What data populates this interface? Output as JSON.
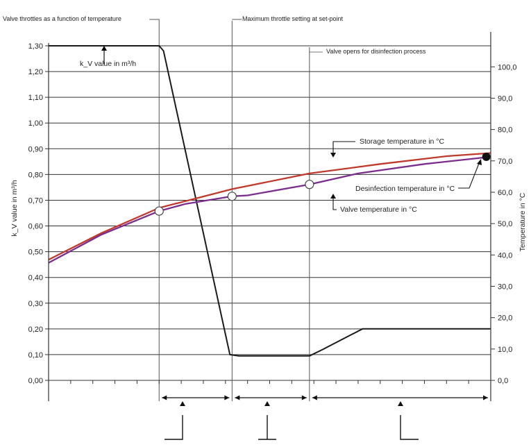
{
  "chart_data": {
    "type": "line",
    "annotations": {
      "throttle_function": "Valve throttles as a function of temperature",
      "max_throttle": "Maximum throttle setting at set-point",
      "valve_opens": "Valve opens for disinfection process",
      "kv_inline": "k_V value in m³/h",
      "storage": "Storage temperature in °C",
      "disinfection": "Desinfection temperature in °C",
      "valve_temp": "Valve temperature in °C"
    },
    "ylabel_left": "k_V value in m³/h",
    "ylabel_right": "Temperature in °C",
    "y_left": {
      "range": [
        0.0,
        1.3
      ],
      "ticks": [
        "0,00",
        "0,10",
        "0,20",
        "0,30",
        "0,40",
        "0,50",
        "0,60",
        "0,70",
        "0,80",
        "0,90",
        "1,00",
        "1,10",
        "1,20",
        "1,30"
      ]
    },
    "y_right": {
      "range": [
        0.0,
        106.7
      ],
      "ticks": [
        "0,0",
        "10,0",
        "20,0",
        "30,0",
        "40,0",
        "50,0",
        "60,0",
        "70,0",
        "80,0",
        "90,0",
        "100,0"
      ]
    },
    "x": {
      "range": [
        0,
        100
      ]
    },
    "grid": true,
    "phase_markers_x": [
      25,
      41.5,
      59
    ],
    "series": [
      {
        "role": "kv_value",
        "color": "#1a1a1a",
        "axis": "left",
        "points": [
          [
            0,
            1.3
          ],
          [
            25,
            1.3
          ],
          [
            26,
            1.28
          ],
          [
            41,
            0.1
          ],
          [
            43,
            0.095
          ],
          [
            59,
            0.095
          ],
          [
            62,
            0.12
          ],
          [
            71,
            0.2
          ],
          [
            100,
            0.2
          ]
        ]
      },
      {
        "role": "storage_temperature",
        "color": "#c0392b",
        "axis": "right",
        "points": [
          [
            0,
            38.5
          ],
          [
            12,
            47
          ],
          [
            25,
            55
          ],
          [
            41.5,
            61
          ],
          [
            59,
            66
          ],
          [
            75,
            69
          ],
          [
            90,
            71.5
          ],
          [
            100,
            72.5
          ]
        ]
      },
      {
        "role": "valve_temperature",
        "color": "#7b2d8e",
        "axis": "right",
        "points": [
          [
            0,
            37.5
          ],
          [
            12,
            46.5
          ],
          [
            25,
            54
          ],
          [
            31,
            56.3
          ],
          [
            41.5,
            58.7
          ],
          [
            45,
            59
          ],
          [
            59,
            62.5
          ],
          [
            70,
            66
          ],
          [
            85,
            69
          ],
          [
            100,
            71.3
          ]
        ]
      }
    ],
    "markers_open": [
      {
        "x": 25,
        "y": 54,
        "axis": "right"
      },
      {
        "x": 41.5,
        "y": 58.7,
        "axis": "right"
      },
      {
        "x": 59,
        "y": 62.5,
        "axis": "right"
      }
    ],
    "marker_filled": {
      "x": 99,
      "y": 71.3,
      "axis": "right"
    }
  }
}
